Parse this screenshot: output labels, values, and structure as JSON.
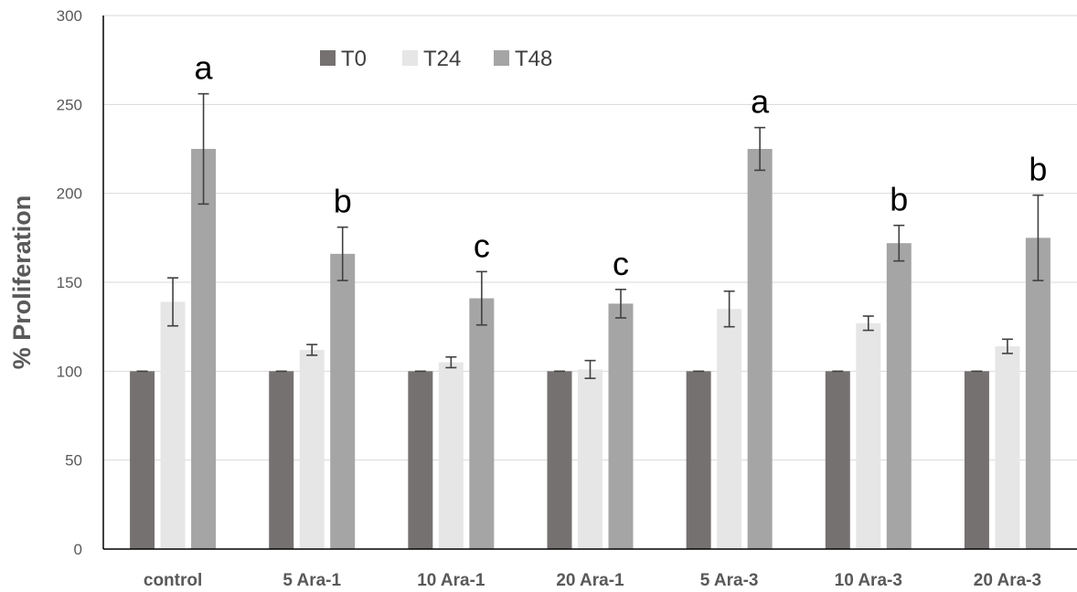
{
  "chart_data": {
    "type": "bar",
    "title": "",
    "xlabel": "",
    "ylabel": "% Proliferation",
    "ylim": [
      0,
      300
    ],
    "yticks": [
      0,
      50,
      100,
      150,
      200,
      250,
      300
    ],
    "grid": true,
    "legend_position": "top-left",
    "categories": [
      "control",
      "5 Ara-1",
      "10 Ara-1",
      "20 Ara-1",
      "5 Ara-3",
      "10 Ara-3",
      "20 Ara-3"
    ],
    "series": [
      {
        "name": "T0",
        "color": "#767171",
        "values": [
          100,
          100,
          100,
          100,
          100,
          100,
          100
        ],
        "errors": [
          0,
          0,
          0,
          0,
          0,
          0,
          0
        ]
      },
      {
        "name": "T24",
        "color": "#e7e6e6",
        "values": [
          139,
          112,
          105,
          101,
          135,
          127,
          114
        ],
        "errors": [
          13.5,
          3,
          3,
          5,
          10,
          4,
          4
        ]
      },
      {
        "name": "T48",
        "color": "#a5a5a5",
        "values": [
          225,
          166,
          141,
          138,
          225,
          172,
          175
        ],
        "errors": [
          31,
          15,
          15,
          8,
          12,
          10,
          24
        ]
      }
    ],
    "annotations": [
      "a",
      "b",
      "c",
      "c",
      "a",
      "b",
      "b"
    ]
  }
}
